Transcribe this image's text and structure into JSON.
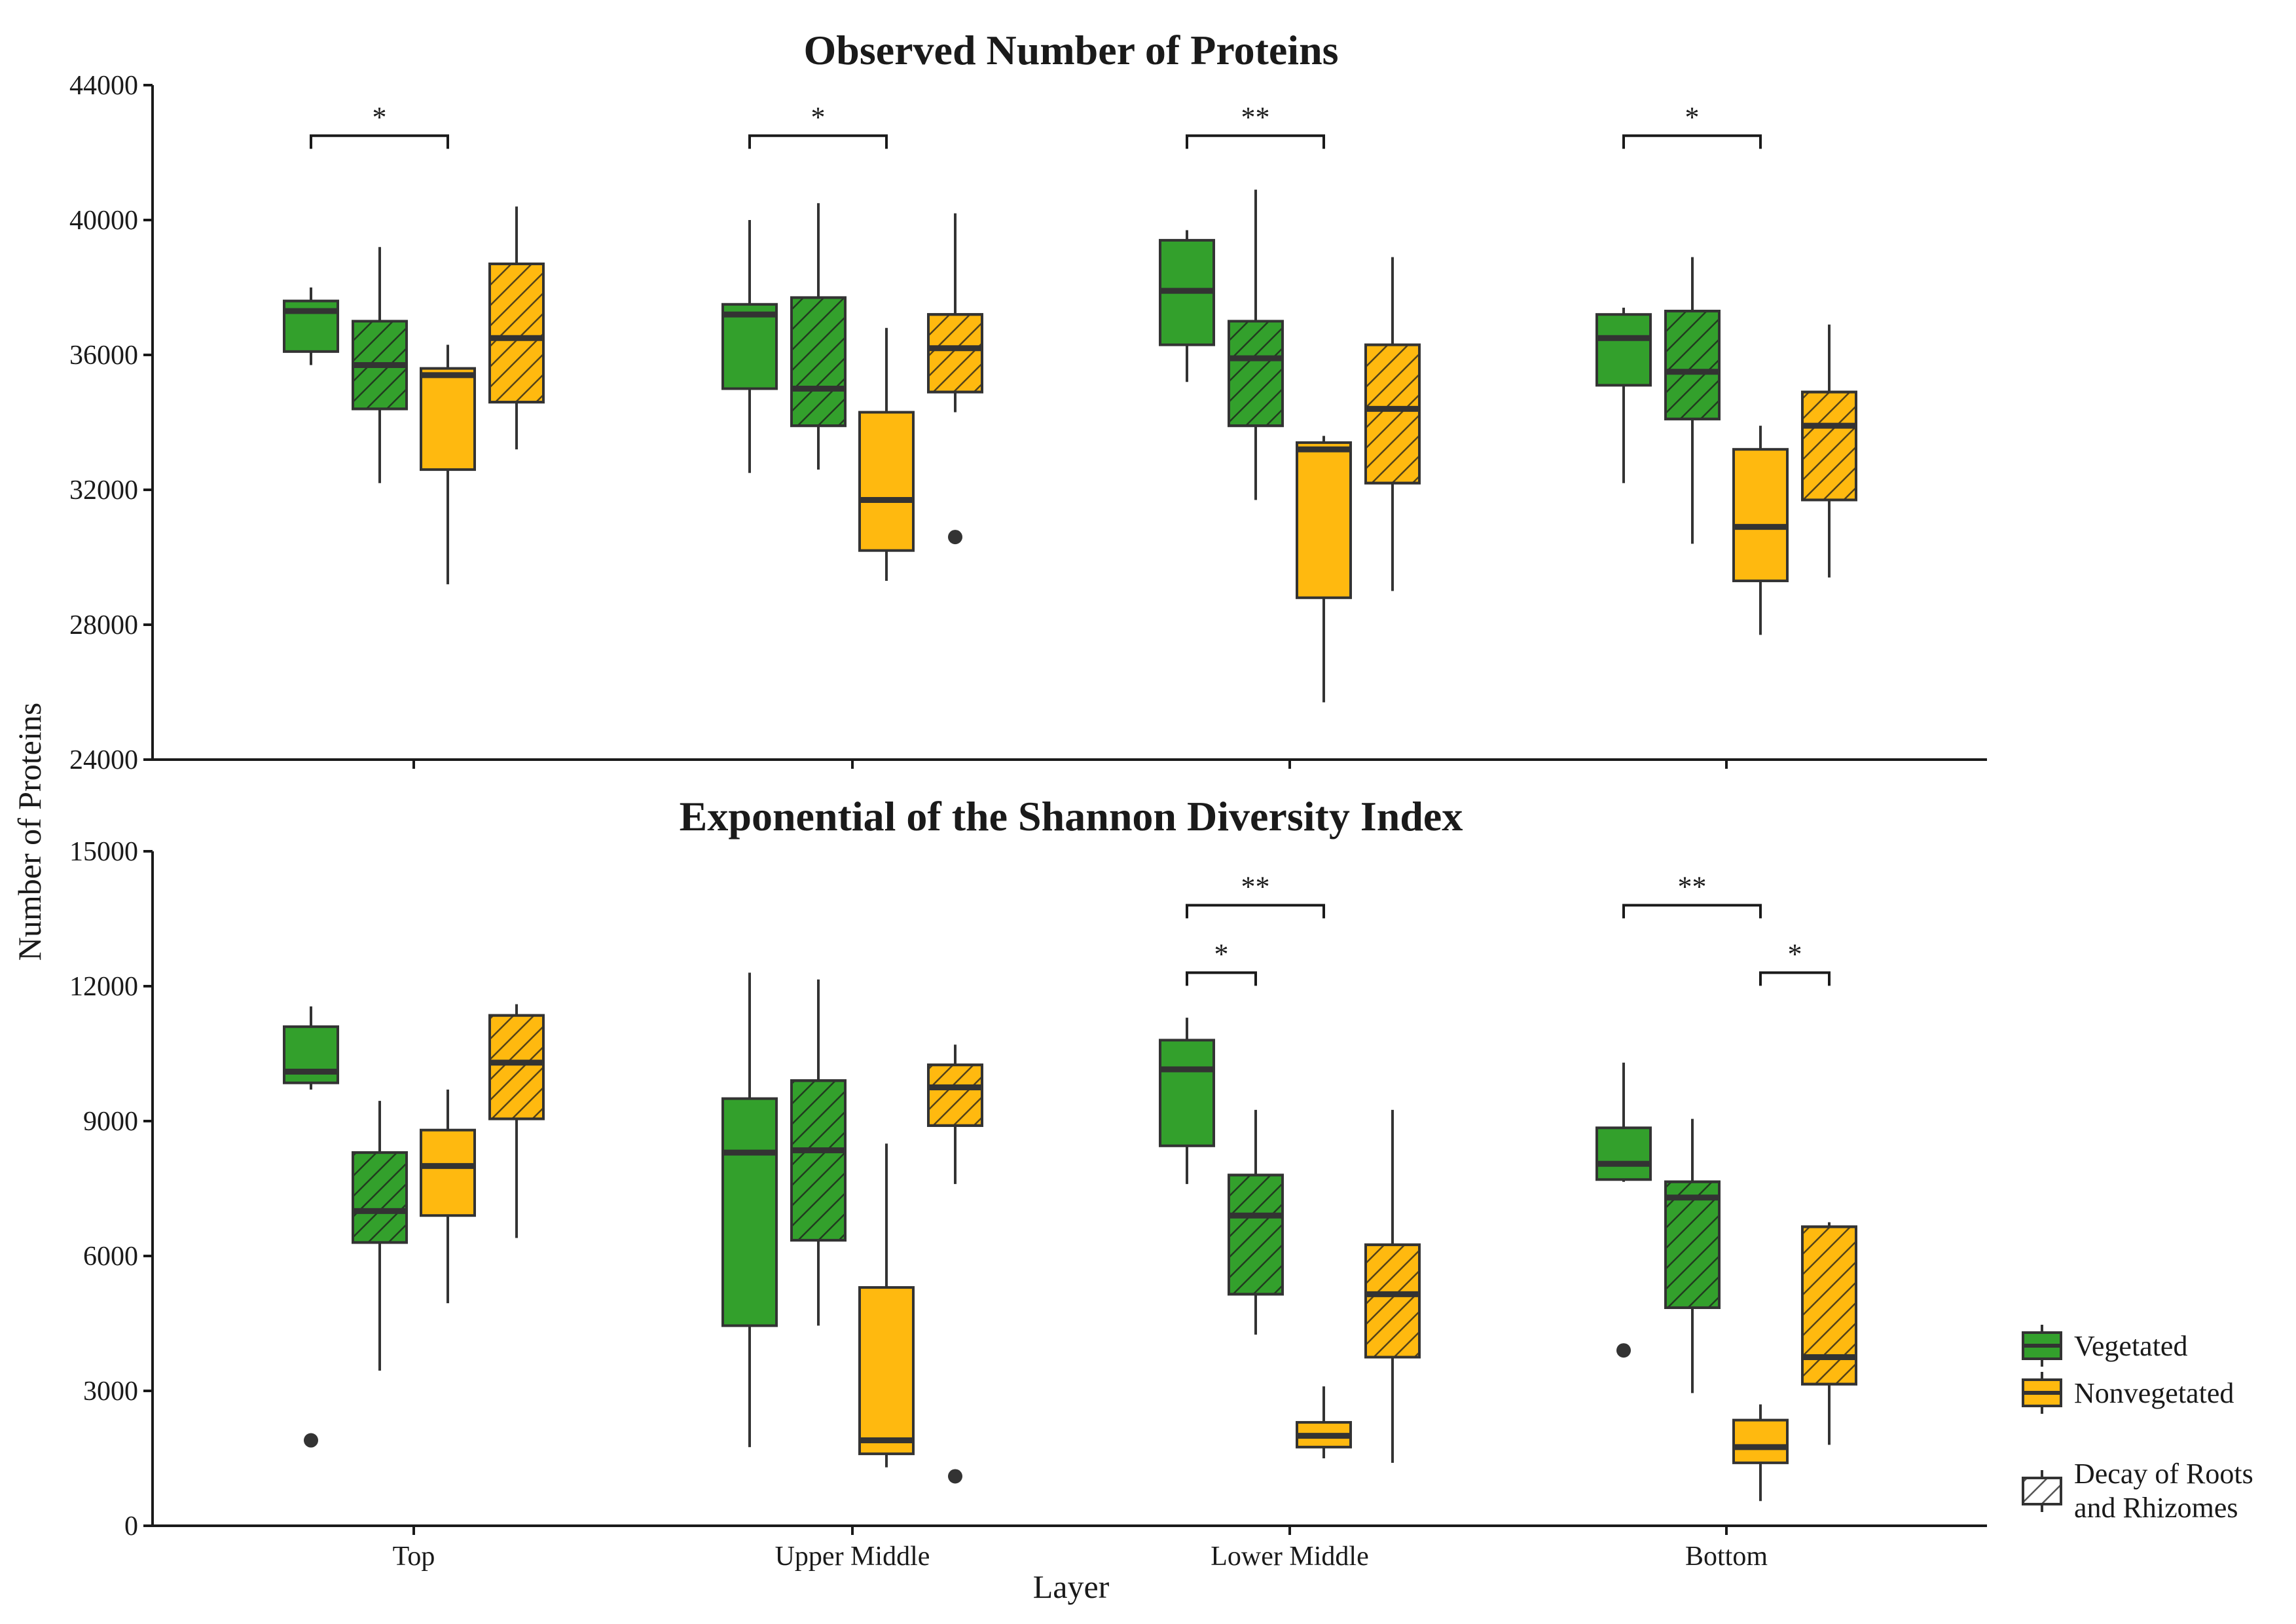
{
  "colors": {
    "vegetated": "#33a02c",
    "nonvegetated": "#ffb90f",
    "outline": "#333333",
    "axis": "#1a1a1a",
    "background": "#ffffff"
  },
  "axes": {
    "xlabel": "Layer",
    "ylabel": "Number of Proteins"
  },
  "legend": {
    "placement": "right",
    "items": [
      {
        "label": "Vegetated",
        "key": "vegetated",
        "hatched": false
      },
      {
        "label": "Nonvegetated",
        "key": "nonvegetated",
        "hatched": false
      },
      {
        "label_lines": [
          "Decay of Roots",
          "and Rhizomes"
        ],
        "key": "decay",
        "hatched": true
      }
    ]
  },
  "chart_data": [
    {
      "type": "box",
      "title": "Observed Number of Proteins",
      "categories": [
        "Top",
        "Upper Middle",
        "Lower Middle",
        "Bottom"
      ],
      "ylim": [
        24000,
        44000
      ],
      "yticks": [
        24000,
        28000,
        32000,
        36000,
        40000,
        44000
      ],
      "grid": false,
      "series": [
        {
          "name": "Vegetated",
          "decay": false,
          "boxes": [
            {
              "min": 35700,
              "q1": 36100,
              "median": 37300,
              "q3": 37600,
              "max": 38000,
              "outliers": []
            },
            {
              "min": 32500,
              "q1": 35000,
              "median": 37200,
              "q3": 37500,
              "max": 40000,
              "outliers": []
            },
            {
              "min": 35200,
              "q1": 36300,
              "median": 37900,
              "q3": 39400,
              "max": 39700,
              "outliers": []
            },
            {
              "min": 32200,
              "q1": 35100,
              "median": 36500,
              "q3": 37200,
              "max": 37400,
              "outliers": []
            }
          ]
        },
        {
          "name": "Vegetated",
          "decay": true,
          "boxes": [
            {
              "min": 32200,
              "q1": 34400,
              "median": 35700,
              "q3": 37000,
              "max": 39200,
              "outliers": []
            },
            {
              "min": 32600,
              "q1": 33900,
              "median": 35000,
              "q3": 37700,
              "max": 40500,
              "outliers": []
            },
            {
              "min": 31700,
              "q1": 33900,
              "median": 35900,
              "q3": 37000,
              "max": 40900,
              "outliers": []
            },
            {
              "min": 30400,
              "q1": 34100,
              "median": 35500,
              "q3": 37300,
              "max": 38900,
              "outliers": []
            }
          ]
        },
        {
          "name": "Nonvegetated",
          "decay": false,
          "boxes": [
            {
              "min": 29200,
              "q1": 32600,
              "median": 35400,
              "q3": 35600,
              "max": 36300,
              "outliers": []
            },
            {
              "min": 29300,
              "q1": 30200,
              "median": 31700,
              "q3": 34300,
              "max": 36800,
              "outliers": []
            },
            {
              "min": 25700,
              "q1": 28800,
              "median": 33200,
              "q3": 33400,
              "max": 33600,
              "outliers": []
            },
            {
              "min": 27700,
              "q1": 29300,
              "median": 30900,
              "q3": 33200,
              "max": 33900,
              "outliers": []
            }
          ]
        },
        {
          "name": "Nonvegetated",
          "decay": true,
          "boxes": [
            {
              "min": 33200,
              "q1": 34600,
              "median": 36500,
              "q3": 38700,
              "max": 40400,
              "outliers": []
            },
            {
              "min": 34300,
              "q1": 34900,
              "median": 36200,
              "q3": 37200,
              "max": 40200,
              "outliers": [
                30600
              ]
            },
            {
              "min": 29000,
              "q1": 32200,
              "median": 34400,
              "q3": 36300,
              "max": 38900,
              "outliers": []
            },
            {
              "min": 29400,
              "q1": 31700,
              "median": 33900,
              "q3": 34900,
              "max": 36900,
              "outliers": []
            }
          ]
        }
      ],
      "significance": [
        {
          "category": 0,
          "from_series": 0,
          "to_series": 2,
          "label": "*",
          "y": 42500
        },
        {
          "category": 1,
          "from_series": 0,
          "to_series": 2,
          "label": "*",
          "y": 42500
        },
        {
          "category": 2,
          "from_series": 0,
          "to_series": 2,
          "label": "**",
          "y": 42500
        },
        {
          "category": 3,
          "from_series": 0,
          "to_series": 2,
          "label": "*",
          "y": 42500
        }
      ]
    },
    {
      "type": "box",
      "title": "Exponential of the Shannon Diversity Index",
      "categories": [
        "Top",
        "Upper Middle",
        "Lower Middle",
        "Bottom"
      ],
      "ylim": [
        0,
        15000
      ],
      "yticks": [
        0,
        3000,
        6000,
        9000,
        12000,
        15000
      ],
      "grid": false,
      "series": [
        {
          "name": "Vegetated",
          "decay": false,
          "boxes": [
            {
              "min": 9700,
              "q1": 9850,
              "median": 10100,
              "q3": 11100,
              "max": 11550,
              "outliers": [
                1900
              ]
            },
            {
              "min": 1750,
              "q1": 4450,
              "median": 8300,
              "q3": 9500,
              "max": 12300,
              "outliers": []
            },
            {
              "min": 7600,
              "q1": 8450,
              "median": 10150,
              "q3": 10800,
              "max": 11300,
              "outliers": []
            },
            {
              "min": 7650,
              "q1": 7700,
              "median": 8050,
              "q3": 8850,
              "max": 10300,
              "outliers": [
                3900
              ]
            }
          ]
        },
        {
          "name": "Vegetated",
          "decay": true,
          "boxes": [
            {
              "min": 3450,
              "q1": 6300,
              "median": 7000,
              "q3": 8300,
              "max": 9450,
              "outliers": []
            },
            {
              "min": 4450,
              "q1": 6350,
              "median": 8350,
              "q3": 9900,
              "max": 12150,
              "outliers": []
            },
            {
              "min": 4250,
              "q1": 5150,
              "median": 6900,
              "q3": 7800,
              "max": 9250,
              "outliers": []
            },
            {
              "min": 2950,
              "q1": 4850,
              "median": 7300,
              "q3": 7650,
              "max": 9050,
              "outliers": []
            }
          ]
        },
        {
          "name": "Nonvegetated",
          "decay": false,
          "boxes": [
            {
              "min": 4950,
              "q1": 6900,
              "median": 8000,
              "q3": 8800,
              "max": 9700,
              "outliers": []
            },
            {
              "min": 1300,
              "q1": 1600,
              "median": 1900,
              "q3": 5300,
              "max": 8500,
              "outliers": []
            },
            {
              "min": 1500,
              "q1": 1750,
              "median": 2000,
              "q3": 2300,
              "max": 3100,
              "outliers": []
            },
            {
              "min": 550,
              "q1": 1400,
              "median": 1750,
              "q3": 2350,
              "max": 2700,
              "outliers": []
            }
          ]
        },
        {
          "name": "Nonvegetated",
          "decay": true,
          "boxes": [
            {
              "min": 6400,
              "q1": 9050,
              "median": 10300,
              "q3": 11350,
              "max": 11600,
              "outliers": []
            },
            {
              "min": 7600,
              "q1": 8900,
              "median": 9750,
              "q3": 10250,
              "max": 10700,
              "outliers": [
                1100
              ]
            },
            {
              "min": 1400,
              "q1": 3750,
              "median": 5150,
              "q3": 6250,
              "max": 9250,
              "outliers": []
            },
            {
              "min": 1800,
              "q1": 3150,
              "median": 3750,
              "q3": 6650,
              "max": 6750,
              "outliers": []
            }
          ]
        }
      ],
      "significance": [
        {
          "category": 2,
          "from_series": 0,
          "to_series": 2,
          "label": "**",
          "y": 13800
        },
        {
          "category": 2,
          "from_series": 0,
          "to_series": 1,
          "label": "*",
          "y": 12300
        },
        {
          "category": 3,
          "from_series": 0,
          "to_series": 2,
          "label": "**",
          "y": 13800
        },
        {
          "category": 3,
          "from_series": 2,
          "to_series": 3,
          "label": "*",
          "y": 12300
        }
      ]
    }
  ]
}
